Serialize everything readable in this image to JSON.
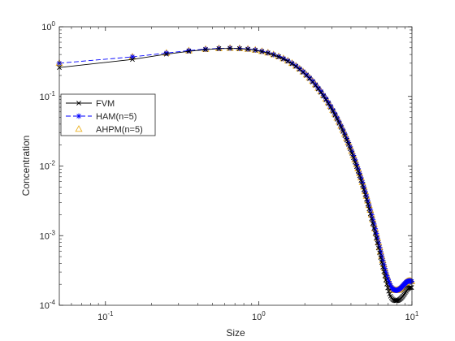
{
  "chart_data": {
    "type": "line",
    "title": "",
    "xlabel": "Size",
    "ylabel": "Concentration",
    "x_scale": "log",
    "y_scale": "log",
    "xlim": [
      0.05,
      10
    ],
    "ylim": [
      0.0001,
      1
    ],
    "x_ticks": [
      {
        "value": 0.1,
        "base": "10",
        "exp": "-1"
      },
      {
        "value": 1,
        "base": "10",
        "exp": "0"
      },
      {
        "value": 10,
        "base": "10",
        "exp": "1"
      }
    ],
    "y_ticks": [
      {
        "value": 1,
        "base": "10",
        "exp": "0"
      },
      {
        "value": 0.1,
        "base": "10",
        "exp": "-1"
      },
      {
        "value": 0.01,
        "base": "10",
        "exp": "-2"
      },
      {
        "value": 0.001,
        "base": "10",
        "exp": "-3"
      },
      {
        "value": 0.0001,
        "base": "10",
        "exp": "-4"
      }
    ],
    "grid": false,
    "legend": {
      "placement": "left-middle"
    },
    "x": [
      0.05,
      0.15,
      0.25,
      0.35,
      0.45,
      0.55,
      0.65,
      0.75,
      0.85,
      0.95,
      1.05,
      1.15,
      1.25,
      1.35,
      1.45,
      1.55,
      1.65,
      1.75,
      1.85,
      1.95,
      2.05,
      2.15,
      2.25,
      2.35,
      2.45,
      2.55,
      2.65,
      2.75,
      2.85,
      2.95,
      3.05,
      3.15,
      3.25,
      3.35,
      3.45,
      3.55,
      3.65,
      3.75,
      3.85,
      3.95,
      4.05,
      4.15,
      4.25,
      4.35,
      4.45,
      4.55,
      4.65,
      4.75,
      4.85,
      4.95,
      5.05,
      5.15,
      5.25,
      5.35,
      5.45,
      5.55,
      5.65,
      5.75,
      5.85,
      5.95,
      6.05,
      6.15,
      6.25,
      6.35,
      6.45,
      6.55,
      6.65,
      6.75,
      6.85,
      6.95,
      7.05,
      7.15,
      7.25,
      7.35,
      7.45,
      7.55,
      7.65,
      7.75,
      7.85,
      7.95,
      8.05,
      8.15,
      8.25,
      8.35,
      8.45,
      8.55,
      8.65,
      8.75,
      8.85,
      8.95,
      9.05,
      9.15,
      9.25,
      9.35,
      9.45,
      9.55,
      9.65,
      9.75,
      9.85,
      9.95
    ],
    "series": [
      {
        "name": "FVM",
        "color": "#000000",
        "marker": "x",
        "line": "solid",
        "values": [
          0.26,
          0.34,
          0.405,
          0.445,
          0.47,
          0.485,
          0.49,
          0.485,
          0.475,
          0.46,
          0.44,
          0.42,
          0.395,
          0.37,
          0.345,
          0.32,
          0.295,
          0.27,
          0.245,
          0.222,
          0.2,
          0.18,
          0.161,
          0.144,
          0.128,
          0.114,
          0.101,
          0.0893,
          0.0788,
          0.0695,
          0.0611,
          0.0537,
          0.047,
          0.0411,
          0.0359,
          0.0313,
          0.0272,
          0.0236,
          0.0205,
          0.0177,
          0.0153,
          0.0132,
          0.0114,
          0.00982,
          0.00845,
          0.00726,
          0.00623,
          0.00534,
          0.00457,
          0.0039,
          0.00333,
          0.00284,
          0.00242,
          0.00206,
          0.00175,
          0.00149,
          0.00127,
          0.00108,
          0.00092,
          0.000782,
          0.000665,
          0.000566,
          0.000483,
          0.000413,
          0.000354,
          0.000305,
          0.000264,
          0.00023,
          0.000202,
          0.000178,
          0.000159,
          0.000145,
          0.000135,
          0.000128,
          0.000123,
          0.00012,
          0.000118,
          0.000117,
          0.000116,
          0.000116,
          0.000117,
          0.000118,
          0.00012,
          0.000122,
          0.000125,
          0.000128,
          0.000132,
          0.000136,
          0.000141,
          0.000146,
          0.000152,
          0.000158,
          0.000164,
          0.00017,
          0.000174,
          0.000177,
          0.000179,
          0.00018,
          0.00018,
          0.00018
        ]
      },
      {
        "name": "HAM(n=5)",
        "color": "#0000ff",
        "marker": "asterisk",
        "line": "dashed",
        "values": [
          0.3,
          0.37,
          0.42,
          0.455,
          0.478,
          0.49,
          0.494,
          0.49,
          0.48,
          0.465,
          0.445,
          0.424,
          0.4,
          0.375,
          0.35,
          0.325,
          0.3,
          0.275,
          0.25,
          0.227,
          0.205,
          0.185,
          0.166,
          0.148,
          0.132,
          0.118,
          0.104,
          0.0925,
          0.0818,
          0.0722,
          0.0637,
          0.056,
          0.0492,
          0.0431,
          0.0377,
          0.033,
          0.0288,
          0.025,
          0.0218,
          0.0189,
          0.0164,
          0.0142,
          0.0123,
          0.0106,
          0.00915,
          0.00789,
          0.00679,
          0.00584,
          0.00502,
          0.00431,
          0.0037,
          0.00317,
          0.00272,
          0.00233,
          0.002,
          0.00171,
          0.00147,
          0.00126,
          0.00108,
          0.000925,
          0.000795,
          0.000684,
          0.00059,
          0.00051,
          0.000443,
          0.000386,
          0.000339,
          0.000299,
          0.000267,
          0.000241,
          0.00022,
          0.000204,
          0.000191,
          0.000182,
          0.000175,
          0.00017,
          0.000167,
          0.000165,
          0.000164,
          0.000164,
          0.000165,
          0.000167,
          0.00017,
          0.000173,
          0.000177,
          0.000181,
          0.000186,
          0.000191,
          0.000197,
          0.000203,
          0.000208,
          0.000213,
          0.000217,
          0.00022,
          0.000222,
          0.000223,
          0.000223,
          0.000223,
          0.000222,
          0.00022
        ]
      },
      {
        "name": "AHPM(n=5)",
        "color": "#edb120",
        "marker": "triangle",
        "line": "none",
        "values": [
          0.3,
          0.37,
          0.42,
          0.455,
          0.478,
          0.49,
          0.494,
          0.49,
          0.48,
          0.465,
          0.445,
          0.424,
          0.4,
          0.375,
          0.35,
          0.325,
          0.3,
          0.275,
          0.25,
          0.227,
          0.205,
          0.185,
          0.166,
          0.148,
          0.132,
          0.118,
          0.104,
          0.0925,
          0.0818,
          0.0722,
          0.0637,
          0.056,
          0.0492,
          0.0431,
          0.0377,
          0.033,
          0.0288,
          0.025,
          0.0218,
          0.0189,
          0.0164,
          0.0142,
          0.0123,
          0.0106,
          0.00915,
          0.00789,
          0.00679,
          0.00584,
          0.00502,
          0.00431,
          0.0037,
          0.00317,
          0.00272,
          0.00233,
          0.002,
          0.00171,
          0.00147,
          0.00126,
          0.00108,
          0.000925,
          0.000795,
          0.000684,
          0.00059,
          0.00051,
          0.000443,
          0.000386,
          0.000339,
          0.000299,
          0.000267,
          0.000241,
          0.00022,
          0.000204,
          0.000191,
          0.000182,
          0.000175,
          0.00017,
          0.000167,
          0.000165,
          0.000164,
          0.000164,
          0.000165,
          0.000167,
          0.00017,
          0.000173,
          0.000177,
          0.000181,
          0.000186,
          0.000191,
          0.000197,
          0.000203,
          0.000208,
          0.000213,
          0.000217,
          0.00022,
          0.000222,
          0.000223,
          0.000223,
          0.000223,
          0.000222,
          0.00022
        ]
      }
    ]
  }
}
